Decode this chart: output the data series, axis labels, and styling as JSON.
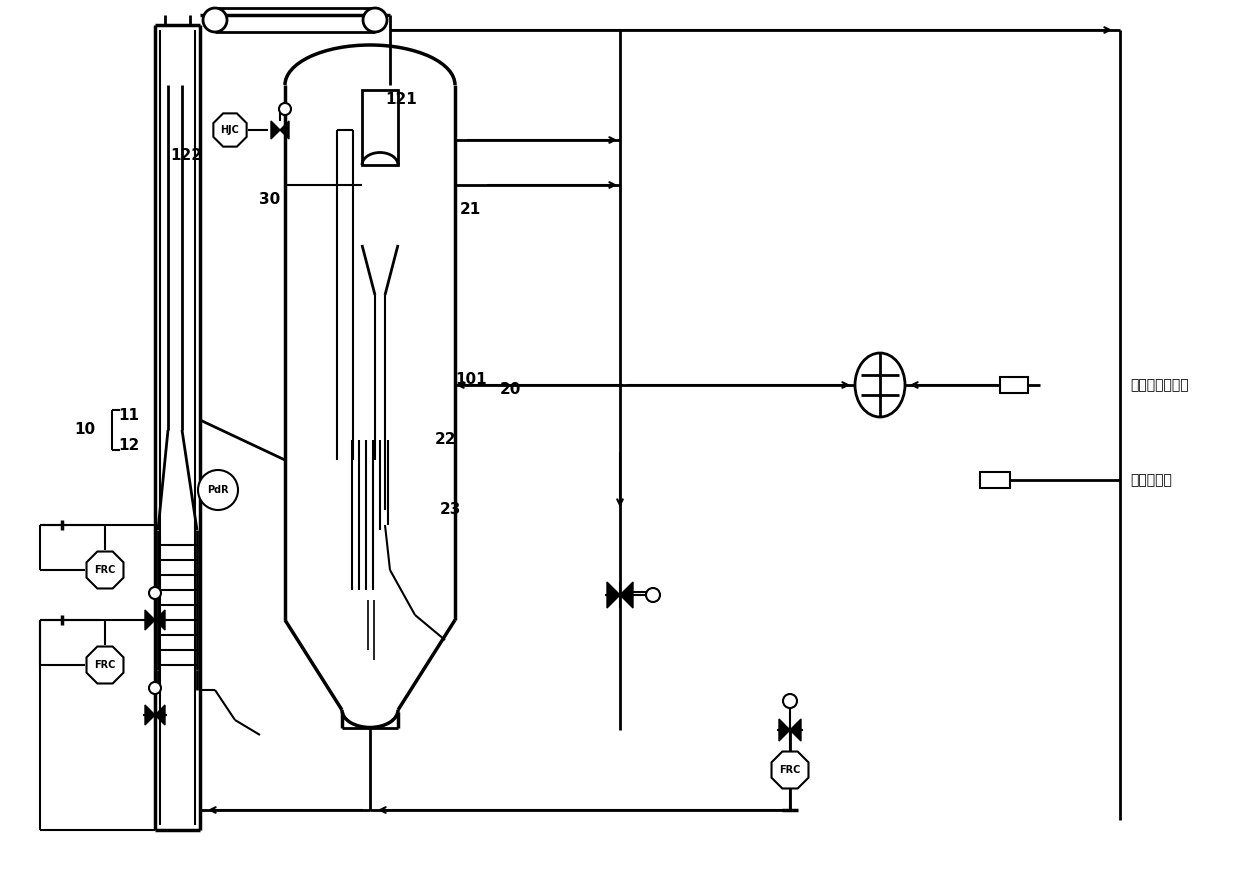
{
  "bg_color": "#ffffff",
  "line_color": "#000000",
  "labels": {
    "raw_material": "原料气（甲醇）",
    "product": "烯烃产品气",
    "num_10": "10",
    "num_11": "11",
    "num_12": "12",
    "num_20": "20",
    "num_21": "21",
    "num_22": "22",
    "num_23": "23",
    "num_30": "30",
    "num_101": "101",
    "num_121": "121",
    "num_122": "122",
    "hjc": "HJC",
    "frc": "FRC",
    "pdr": "PdR"
  }
}
